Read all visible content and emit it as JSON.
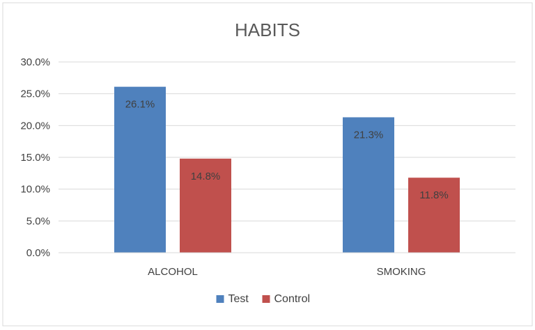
{
  "chart_data": {
    "type": "bar",
    "title": "HABITS",
    "categories": [
      "ALCOHOL",
      "SMOKING"
    ],
    "series": [
      {
        "name": "Test",
        "values": [
          26.1,
          21.3
        ],
        "color": "#4F81BD",
        "labels": [
          "26.1%",
          "21.3%"
        ]
      },
      {
        "name": "Control",
        "values": [
          14.8,
          11.8
        ],
        "color": "#C0504D",
        "labels": [
          "14.8%",
          "11.8%"
        ]
      }
    ],
    "ylim": [
      0,
      30
    ],
    "yticks": [
      "0.0%",
      "5.0%",
      "10.0%",
      "15.0%",
      "20.0%",
      "25.0%",
      "30.0%"
    ],
    "grid": true,
    "legend_position": "bottom"
  }
}
